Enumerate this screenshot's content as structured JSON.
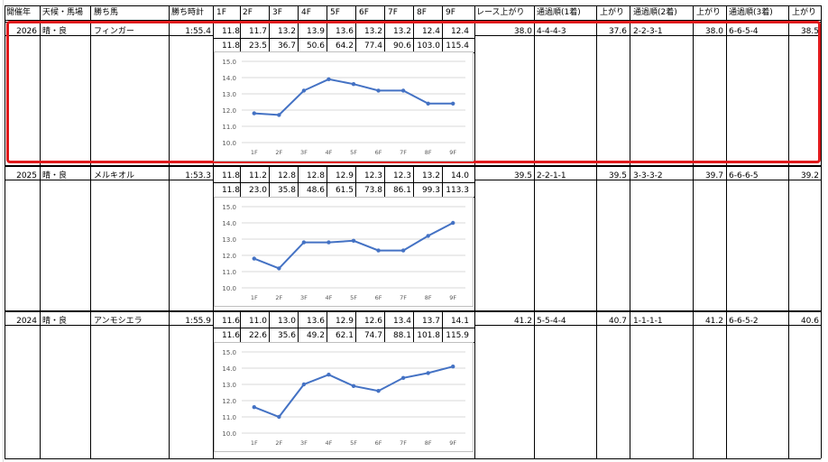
{
  "header": {
    "year": "開催年",
    "condition": "天候・馬場",
    "winner": "勝ち馬",
    "time": "勝ち時計",
    "laps": [
      "1F",
      "2F",
      "3F",
      "4F",
      "5F",
      "6F",
      "7F",
      "8F",
      "9F"
    ],
    "race_last": "レース上がり",
    "pass1": "通過順(1着)",
    "last1": "上がり",
    "pass2": "通過順(2着)",
    "last2": "上がり",
    "pass3": "通過順(3着)",
    "last3": "上がり"
  },
  "rows": [
    {
      "year": "2026",
      "condition": "晴・良",
      "winner": "フィンガー",
      "time": "1:55.4",
      "laps": [
        "11.8",
        "11.7",
        "13.2",
        "13.9",
        "13.6",
        "13.2",
        "13.2",
        "12.4",
        "12.4"
      ],
      "cum": [
        "11.8",
        "23.5",
        "36.7",
        "50.6",
        "64.2",
        "77.4",
        "90.6",
        "103.0",
        "115.4"
      ],
      "race_last": "38.0",
      "pass1": "4-4-4-3",
      "last1": "37.6",
      "pass2": "2-2-3-1",
      "last2": "38.0",
      "pass3": "6-6-5-4",
      "last3": "38.5"
    },
    {
      "year": "2025",
      "condition": "晴・良",
      "winner": "メルキオル",
      "time": "1:53.3",
      "laps": [
        "11.8",
        "11.2",
        "12.8",
        "12.8",
        "12.9",
        "12.3",
        "12.3",
        "13.2",
        "14.0"
      ],
      "cum": [
        "11.8",
        "23.0",
        "35.8",
        "48.6",
        "61.5",
        "73.8",
        "86.1",
        "99.3",
        "113.3"
      ],
      "race_last": "39.5",
      "pass1": "2-2-1-1",
      "last1": "39.5",
      "pass2": "3-3-3-2",
      "last2": "39.7",
      "pass3": "6-6-6-5",
      "last3": "39.2"
    },
    {
      "year": "2024",
      "condition": "晴・良",
      "winner": "アンモシエラ",
      "time": "1:55.9",
      "laps": [
        "11.6",
        "11.0",
        "13.0",
        "13.6",
        "12.9",
        "12.6",
        "13.4",
        "13.7",
        "14.1"
      ],
      "cum": [
        "11.6",
        "22.6",
        "35.6",
        "49.2",
        "62.1",
        "74.7",
        "88.1",
        "101.8",
        "115.9"
      ],
      "race_last": "41.2",
      "pass1": "5-5-4-4",
      "last1": "40.7",
      "pass2": "1-1-1-1",
      "last2": "41.2",
      "pass3": "6-6-5-2",
      "last3": "40.6"
    }
  ],
  "chart_data": [
    {
      "type": "line",
      "categories": [
        "1F",
        "2F",
        "3F",
        "4F",
        "5F",
        "6F",
        "7F",
        "8F",
        "9F"
      ],
      "ylim": [
        10.0,
        15.0
      ],
      "yticks": [
        "15.0",
        "14.0",
        "13.0",
        "12.0",
        "11.0",
        "10.0"
      ],
      "grid": true,
      "series": [
        {
          "values": [
            11.8,
            11.7,
            13.2,
            13.9,
            13.6,
            13.2,
            13.2,
            12.4,
            12.4
          ]
        }
      ]
    },
    {
      "type": "line",
      "categories": [
        "1F",
        "2F",
        "3F",
        "4F",
        "5F",
        "6F",
        "7F",
        "8F",
        "9F"
      ],
      "ylim": [
        10.0,
        15.0
      ],
      "yticks": [
        "15.0",
        "14.0",
        "13.0",
        "12.0",
        "11.0",
        "10.0"
      ],
      "grid": true,
      "series": [
        {
          "values": [
            11.8,
            11.2,
            12.8,
            12.8,
            12.9,
            12.3,
            12.3,
            13.2,
            14.0
          ]
        }
      ]
    },
    {
      "type": "line",
      "categories": [
        "1F",
        "2F",
        "3F",
        "4F",
        "5F",
        "6F",
        "7F",
        "8F",
        "9F"
      ],
      "ylim": [
        10.0,
        15.0
      ],
      "yticks": [
        "15.0",
        "14.0",
        "13.0",
        "12.0",
        "11.0",
        "10.0"
      ],
      "grid": true,
      "series": [
        {
          "values": [
            11.6,
            11.0,
            13.0,
            13.6,
            12.9,
            12.6,
            13.4,
            13.7,
            14.1
          ]
        }
      ]
    }
  ],
  "colors": {
    "line": "#4472c4",
    "highlight": "#e0191b",
    "border": "#000000",
    "grid": "#d9d9d9"
  }
}
